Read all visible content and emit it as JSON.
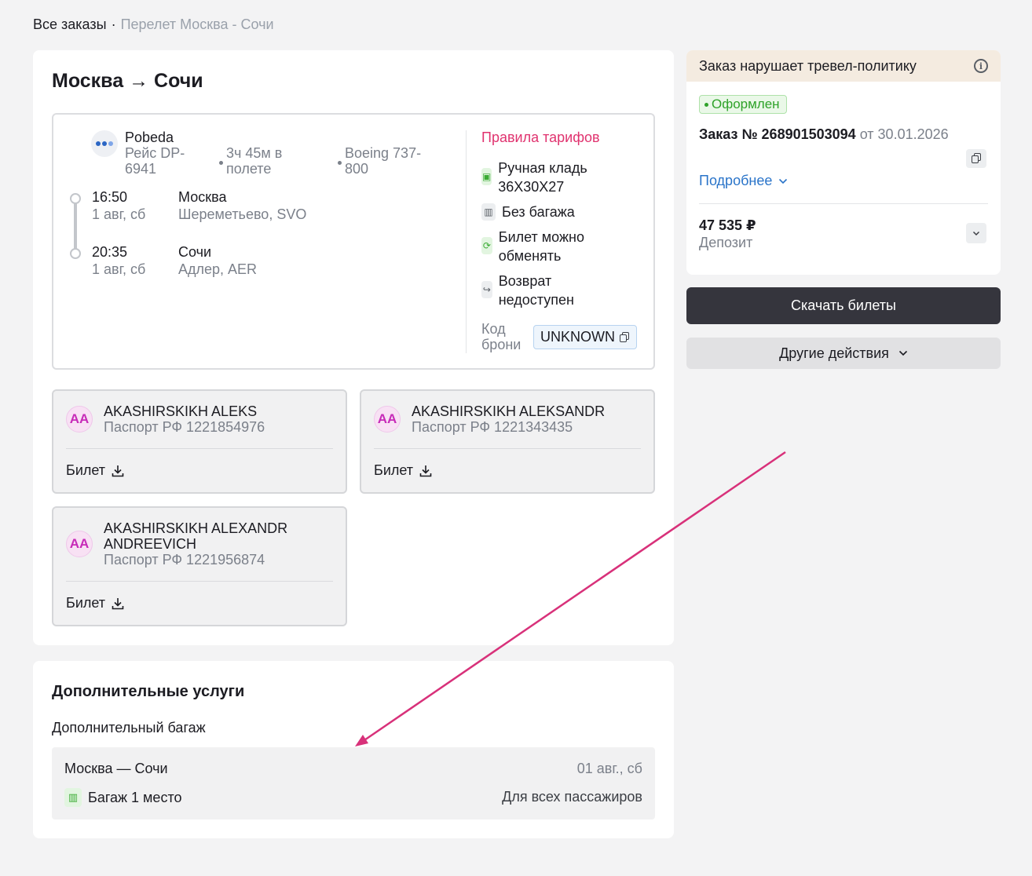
{
  "breadcrumb": {
    "root": "Все заказы",
    "separator": "·",
    "current": "Перелет Москва - Сочи"
  },
  "flight": {
    "route_title": "Москва → Сочи",
    "airline": "Pobeda",
    "flight_number": "Рейс DP-6941",
    "duration": "3ч 45м в полете",
    "aircraft": "Boeing 737-800",
    "departure": {
      "time": "16:50",
      "date": "1 авг, сб",
      "city": "Москва",
      "airport": "Шереметьево, SVO"
    },
    "arrival": {
      "time": "20:35",
      "date": "1 авг, сб",
      "city": "Сочи",
      "airport": "Адлер, AER"
    },
    "tariff_rules_label": "Правила тарифов",
    "tariff_items": [
      {
        "text": "Ручная кладь 36X30X27",
        "icon": "hand-luggage-icon"
      },
      {
        "text": "Без багажа",
        "icon": "no-baggage-icon"
      },
      {
        "text": "Билет можно обменять",
        "icon": "exchange-icon"
      },
      {
        "text": "Возврат недоступен",
        "icon": "refund-icon"
      }
    ],
    "booking_code_label": "Код брони",
    "booking_code": "UNKNOWN"
  },
  "passengers": [
    {
      "initials": "AA",
      "name": "AKASHIRSKIKH ALEKS",
      "document": "Паспорт РФ 1221854976",
      "ticket_label": "Билет"
    },
    {
      "initials": "AA",
      "name": "AKASHIRSKIKH ALEKSANDR",
      "document": "Паспорт РФ 1221343435",
      "ticket_label": "Билет"
    },
    {
      "initials": "AA",
      "name": "AKASHIRSKIKH ALEXANDR ANDREEVICH",
      "document": "Паспорт РФ 1221956874",
      "ticket_label": "Билет"
    }
  ],
  "extras": {
    "title": "Дополнительные услуги",
    "subtitle": "Дополнительный багаж",
    "route": "Москва — Сочи",
    "date": "01 авг., сб",
    "item": "Багаж 1 место",
    "for": "Для всех пассажиров"
  },
  "order": {
    "policy_warning": "Заказ нарушает тревел-политику",
    "status": "Оформлен",
    "number_prefix": "Заказ № ",
    "number": "268901503094",
    "date_suffix": " от 30.01.2026",
    "details_link": "Подробнее",
    "price": "47 535 ₽",
    "payment_method": "Депозит",
    "download_button": "Скачать билеты",
    "other_actions_button": "Другие действия"
  },
  "colors": {
    "accent_pink": "#e0336f",
    "link_blue": "#2a74c9",
    "status_green": "#2ea229",
    "dark_button": "#35353d",
    "annotation_arrow": "#d8317a"
  }
}
